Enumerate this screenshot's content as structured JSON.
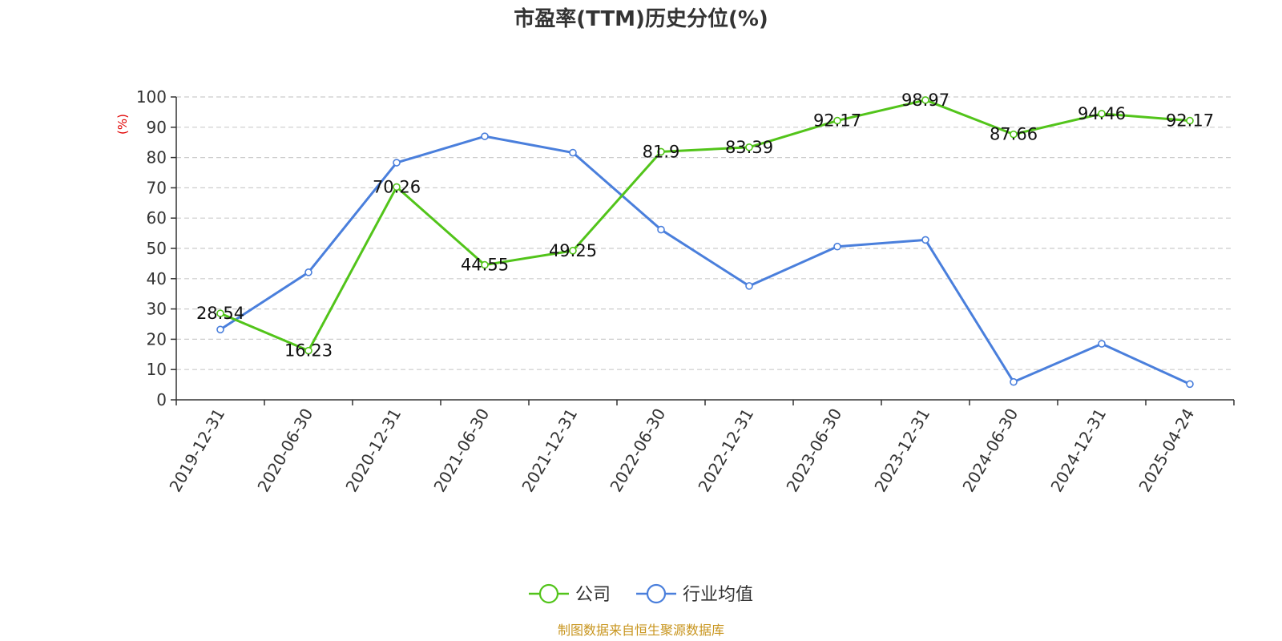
{
  "chart_data": {
    "type": "line",
    "title": "市盈率(TTM)历史分位(%)",
    "ylabel": "(%)",
    "ylim": [
      0,
      100
    ],
    "yticks": [
      0,
      10,
      20,
      30,
      40,
      50,
      60,
      70,
      80,
      90,
      100
    ],
    "grid": true,
    "legend_position": "bottom",
    "categories": [
      "2019-12-31",
      "2020-06-30",
      "2020-12-31",
      "2021-06-30",
      "2021-12-31",
      "2022-06-30",
      "2022-12-31",
      "2023-06-30",
      "2023-12-31",
      "2024-06-30",
      "2024-12-31",
      "2025-04-24"
    ],
    "series": [
      {
        "name": "公司",
        "color": "#52c41a",
        "show_labels": true,
        "values": [
          28.54,
          16.23,
          70.26,
          44.55,
          49.25,
          81.9,
          83.39,
          92.17,
          98.97,
          87.66,
          94.46,
          92.17
        ]
      },
      {
        "name": "行业均值",
        "color": "#4a7fdc",
        "show_labels": false,
        "values": [
          23.2,
          42.1,
          78.3,
          87.0,
          81.6,
          56.2,
          37.6,
          50.6,
          52.8,
          5.9,
          18.5,
          5.2
        ]
      }
    ],
    "source": "制图数据来自恒生聚源数据库"
  }
}
